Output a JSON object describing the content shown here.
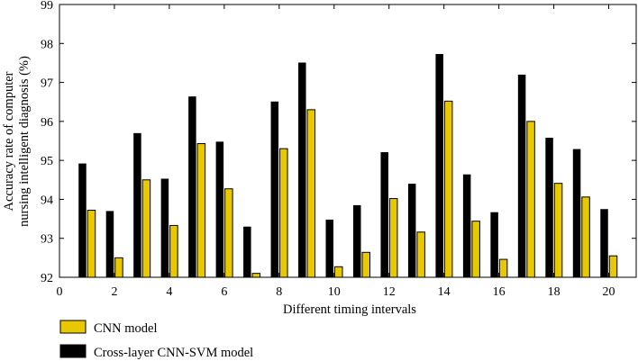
{
  "chart_data": {
    "type": "bar",
    "title": "",
    "xlabel": "Different timing intervals",
    "ylabel_line1": "Accuracy rate of computer",
    "ylabel_line2": "nursing intelligent diagnosis (%)",
    "x": [
      1,
      2,
      3,
      4,
      5,
      6,
      7,
      8,
      9,
      10,
      11,
      12,
      13,
      14,
      15,
      16,
      17,
      18,
      19,
      20
    ],
    "xlim": [
      0,
      21
    ],
    "ylim": [
      92,
      99
    ],
    "xticks": [
      0,
      2,
      4,
      6,
      8,
      10,
      12,
      14,
      16,
      18,
      20
    ],
    "yticks": [
      92,
      93,
      94,
      95,
      96,
      97,
      98,
      99
    ],
    "legend_position": "bottom-left",
    "series": [
      {
        "name": "Cross-layer CNN-SVM model",
        "color": "#000000",
        "values": [
          94.92,
          93.7,
          95.7,
          94.53,
          96.64,
          95.48,
          93.3,
          96.51,
          97.51,
          93.48,
          93.85,
          95.21,
          94.4,
          97.73,
          94.64,
          93.67,
          97.2,
          95.58,
          95.29,
          93.75
        ]
      },
      {
        "name": "CNN model",
        "color": "#e8c800",
        "values": [
          93.72,
          92.5,
          94.5,
          93.33,
          95.43,
          94.27,
          92.1,
          95.3,
          96.3,
          92.27,
          92.64,
          94.02,
          93.16,
          96.52,
          93.44,
          92.46,
          96.0,
          94.41,
          94.06,
          92.55
        ]
      }
    ]
  }
}
